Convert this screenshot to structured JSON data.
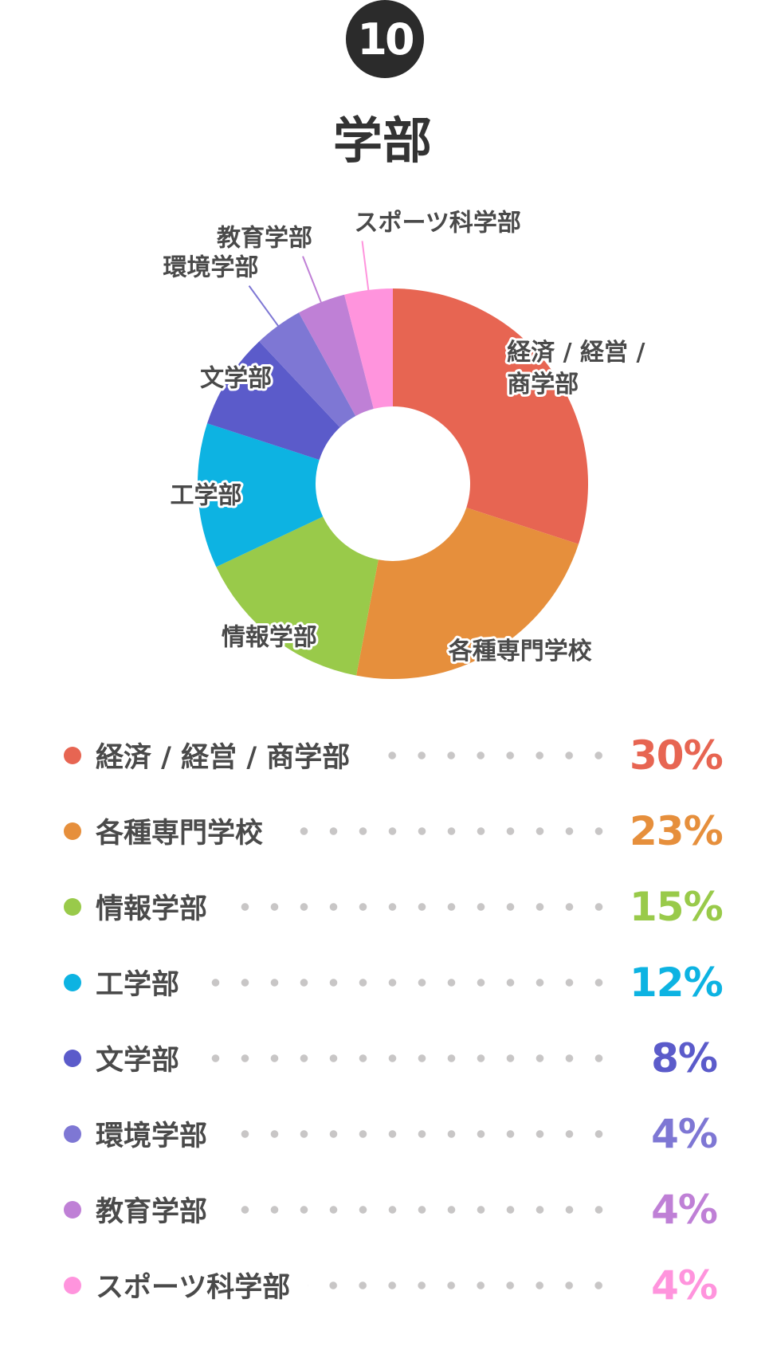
{
  "badge": {
    "number": "10"
  },
  "title": "学部",
  "chart_data": {
    "type": "pie",
    "donut": true,
    "unit": "%",
    "title": "学部",
    "categories": [
      "経済 / 経営 / 商学部",
      "各種専門学校",
      "情報学部",
      "工学部",
      "文学部",
      "環境学部",
      "教育学部",
      "スポーツ科学部"
    ],
    "values": [
      30,
      23,
      15,
      12,
      8,
      4,
      4,
      4
    ],
    "colors": [
      "#e76552",
      "#e68f3c",
      "#99ca4a",
      "#0db3e2",
      "#5b5bca",
      "#7e77d4",
      "#bf80d6",
      "#ff94dd"
    ],
    "slice_labels": [
      [
        "経済 / 経営 /",
        "商学部"
      ],
      [
        "各種専門学校"
      ],
      [
        "情報学部"
      ],
      [
        "工学部"
      ],
      [
        "文学部"
      ],
      [
        "環境学部"
      ],
      [
        "教育学部"
      ],
      [
        "スポーツ科学部"
      ]
    ],
    "value_labels": [
      "30%",
      "23%",
      "15%",
      "12%",
      "8%",
      "4%",
      "4%",
      "4%"
    ],
    "legend_position": "bottom"
  }
}
